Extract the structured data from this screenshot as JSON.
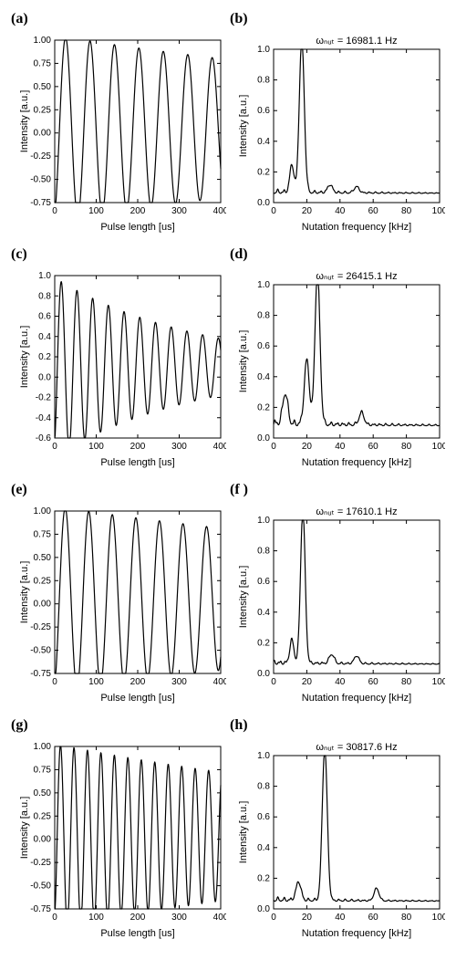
{
  "global": {
    "background_color": "#ffffff",
    "line_color": "#000000",
    "axis_color": "#000000",
    "font_family": "sans-serif",
    "label_fontsize": 11,
    "tick_fontsize": 10,
    "title_fontsize": 11,
    "panel_label_fontsize": 16,
    "panel_label_fontweight": "bold",
    "line_width": 1.2
  },
  "panels": {
    "a": {
      "label": "(a)",
      "type": "line",
      "xlabel": "Pulse length [us]",
      "ylabel": "Intensity [a.u.]",
      "xlim": [
        0,
        400
      ],
      "xtick_step": 100,
      "ylim": [
        -0.75,
        1.0
      ],
      "ytick_step": 0.25,
      "osc": {
        "freq_hz": 16981.1,
        "amp0": 1.0,
        "decay_us": 1400,
        "phase_deg": -70,
        "baseline": 0.05
      }
    },
    "b": {
      "label": "(b)",
      "type": "spectrum",
      "title": "ωₙᵤₜ = 16981.1 Hz",
      "xlabel": "Nutation frequency [kHz]",
      "ylabel": "Intensity [a.u.]",
      "xlim": [
        0,
        100
      ],
      "xtick_step": 20,
      "ylim": [
        0.0,
        1.0
      ],
      "ytick_step": 0.2,
      "peaks": [
        {
          "f": 16.981,
          "amp": 1.0,
          "width": 3.0
        },
        {
          "f": 11.0,
          "amp": 0.18,
          "width": 2.5
        },
        {
          "f": 34.0,
          "amp": 0.05,
          "width": 3.0
        },
        {
          "f": 50.0,
          "amp": 0.04,
          "width": 3.0
        }
      ],
      "noise_base": 0.06,
      "noise_amp": 0.03
    },
    "c": {
      "label": "(c)",
      "type": "line",
      "xlabel": "Pulse length [us]",
      "ylabel": "Intensity [a.u.]",
      "xlim": [
        0,
        400
      ],
      "xtick_step": 100,
      "ylim": [
        -0.6,
        1.0
      ],
      "ytick_step": 0.2,
      "osc": {
        "freq_hz": 26415.1,
        "amp0": 0.88,
        "decay_us": 350,
        "phase_deg": -60,
        "baseline": 0.1
      }
    },
    "d": {
      "label": "(d)",
      "type": "spectrum",
      "title": "ωₙᵤₜ = 26415.1 Hz",
      "xlabel": "Nutation frequency [kHz]",
      "ylabel": "Intensity [a.u.]",
      "xlim": [
        0,
        100
      ],
      "xtick_step": 20,
      "ylim": [
        0.0,
        1.0
      ],
      "ytick_step": 0.2,
      "peaks": [
        {
          "f": 26.415,
          "amp": 1.0,
          "width": 3.0
        },
        {
          "f": 20.0,
          "amp": 0.42,
          "width": 3.0
        },
        {
          "f": 7.0,
          "amp": 0.2,
          "width": 3.0
        },
        {
          "f": 53.0,
          "amp": 0.08,
          "width": 3.0
        }
      ],
      "noise_base": 0.08,
      "noise_amp": 0.05
    },
    "e": {
      "label": "(e)",
      "type": "line",
      "xlabel": "Pulse length [us]",
      "ylabel": "Intensity [a.u.]",
      "xlim": [
        0,
        400
      ],
      "xtick_step": 100,
      "ylim": [
        -0.75,
        1.0
      ],
      "ytick_step": 0.25,
      "osc": {
        "freq_hz": 17610.1,
        "amp0": 1.0,
        "decay_us": 1500,
        "phase_deg": -70,
        "baseline": 0.05
      }
    },
    "f": {
      "label": "(f )",
      "type": "spectrum",
      "title": "ωₙᵤₜ = 17610.1 Hz",
      "xlabel": "Nutation frequency [kHz]",
      "ylabel": "Intensity [a.u.]",
      "xlim": [
        0,
        100
      ],
      "xtick_step": 20,
      "ylim": [
        0.0,
        1.0
      ],
      "ytick_step": 0.2,
      "peaks": [
        {
          "f": 17.61,
          "amp": 1.0,
          "width": 2.8
        },
        {
          "f": 11.0,
          "amp": 0.15,
          "width": 2.5
        },
        {
          "f": 35.0,
          "amp": 0.06,
          "width": 3.0
        },
        {
          "f": 50.0,
          "amp": 0.05,
          "width": 3.0
        }
      ],
      "noise_base": 0.06,
      "noise_amp": 0.03
    },
    "g": {
      "label": "(g)",
      "type": "line",
      "xlabel": "Pulse length [us]",
      "ylabel": "Intensity [a.u.]",
      "xlim": [
        0,
        400
      ],
      "xtick_step": 100,
      "ylim": [
        -0.75,
        1.0
      ],
      "ytick_step": 0.25,
      "osc": {
        "freq_hz": 30817.6,
        "amp0": 1.0,
        "decay_us": 1100,
        "phase_deg": -65,
        "baseline": 0.03
      }
    },
    "h": {
      "label": "(h)",
      "type": "spectrum",
      "title": "ωₙᵤₜ = 30817.6 Hz",
      "xlabel": "Nutation frequency [kHz]",
      "ylabel": "Intensity [a.u.]",
      "xlim": [
        0,
        100
      ],
      "xtick_step": 20,
      "ylim": [
        0.0,
        1.0
      ],
      "ytick_step": 0.2,
      "peaks": [
        {
          "f": 30.817,
          "amp": 1.0,
          "width": 3.0
        },
        {
          "f": 15.0,
          "amp": 0.12,
          "width": 3.0
        },
        {
          "f": 62.0,
          "amp": 0.08,
          "width": 3.0
        }
      ],
      "noise_base": 0.05,
      "noise_amp": 0.03
    }
  },
  "order": [
    "a",
    "b",
    "c",
    "d",
    "e",
    "f",
    "g",
    "h"
  ]
}
